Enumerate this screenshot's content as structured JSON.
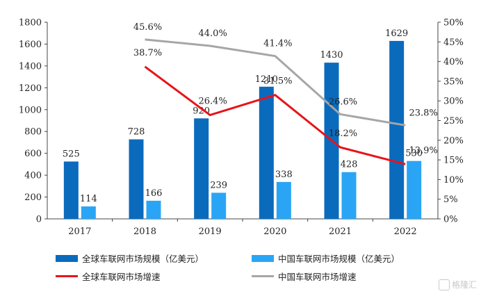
{
  "chart_data": {
    "type": "bar",
    "categories": [
      "2017",
      "2018",
      "2019",
      "2020",
      "2021",
      "2022"
    ],
    "series": [
      {
        "name": "全球车联网市场规模（亿美元）",
        "kind": "bar",
        "axis": "left",
        "values": [
          525,
          728,
          920,
          1210,
          1430,
          1629
        ]
      },
      {
        "name": "中国车联网市场规模（亿美元）",
        "kind": "bar",
        "axis": "left",
        "values": [
          114,
          166,
          239,
          338,
          428,
          530
        ]
      },
      {
        "name": "全球车联网市场增速",
        "kind": "line",
        "axis": "right",
        "values": [
          null,
          38.7,
          26.4,
          31.5,
          18.2,
          13.9
        ]
      },
      {
        "name": "中国车联网市场增速",
        "kind": "line",
        "axis": "right",
        "values": [
          null,
          45.6,
          44.0,
          41.4,
          26.6,
          23.8
        ]
      }
    ],
    "ylim_left": [
      0,
      1800
    ],
    "yticks_left": [
      "0",
      "200",
      "400",
      "600",
      "800",
      "1000",
      "1200",
      "1400",
      "1600",
      "1800"
    ],
    "ylim_right": [
      0,
      50
    ],
    "yticks_right": [
      "0%",
      "5%",
      "10%",
      "15%",
      "20%",
      "25%",
      "30%",
      "35%",
      "40%",
      "45%",
      "50%"
    ],
    "grid": false,
    "legend_position": "bottom",
    "colors": {
      "global_bar": "#0a6bbd",
      "china_bar": "#2aa5f5",
      "global_line": "#e8131a",
      "china_line": "#a6a6a6"
    }
  },
  "watermark": {
    "text": "格隆汇",
    "icon": "glh-logo-icon"
  }
}
